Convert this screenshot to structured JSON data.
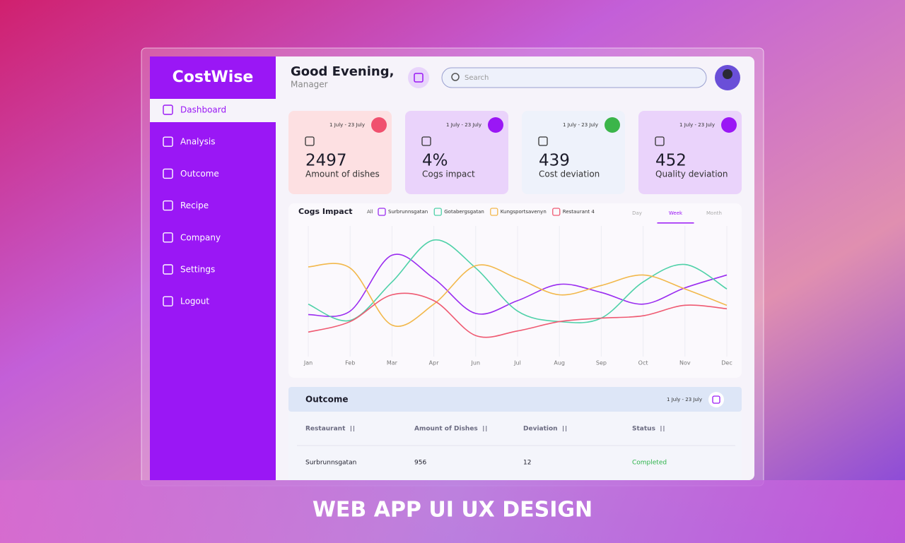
{
  "brand": "CostWise",
  "nav": [
    "Dashboard",
    "Analysis",
    "Outcome",
    "Recipe",
    "Company",
    "Settings",
    "Logout"
  ],
  "header": {
    "greeting": "Good Evening,",
    "role": "Manager",
    "search_placeholder": "Search"
  },
  "cards": [
    {
      "date": "1 July - 23 July",
      "value": "2497",
      "label": "Amount of dishes"
    },
    {
      "date": "1 July - 23 July",
      "value": "4%",
      "label": "Cogs impact"
    },
    {
      "date": "1 July - 23 July",
      "value": "439",
      "label": "Cost deviation"
    },
    {
      "date": "1 July - 23 July",
      "value": "452",
      "label": "Quality deviation"
    }
  ],
  "chart_data": {
    "type": "line",
    "title": "Cogs Impact",
    "filter_all": "All",
    "ranges": [
      "Day",
      "Week",
      "Month"
    ],
    "active_range": 1,
    "categories": [
      "Jan",
      "Feb",
      "Mar",
      "Apr",
      "Jun",
      "Jul",
      "Aug",
      "Sep",
      "Oct",
      "Nov",
      "Dec"
    ],
    "ylim": [
      0,
      100
    ],
    "series": [
      {
        "name": "Surbrunnsgatan",
        "color": "#9a2cf0",
        "values": [
          33,
          36,
          84,
          64,
          34,
          45,
          59,
          52,
          42,
          56,
          67
        ]
      },
      {
        "name": "Gotabergsgatan",
        "color": "#4fd1a8",
        "values": [
          42,
          28,
          61,
          97,
          73,
          36,
          27,
          30,
          61,
          76,
          55
        ]
      },
      {
        "name": "Kungsportsavenyn",
        "color": "#f2b84b",
        "values": [
          74,
          73,
          24,
          42,
          75,
          64,
          50,
          58,
          67,
          55,
          41
        ]
      },
      {
        "name": "Restaurant 4",
        "color": "#ef5a72",
        "values": [
          18,
          27,
          50,
          45,
          15,
          19,
          27,
          30,
          32,
          41,
          38
        ]
      }
    ]
  },
  "table": {
    "title": "Outcome",
    "date": "1 July - 23 July",
    "columns": [
      "Restaurant",
      "Amount of Dishes",
      "Deviation",
      "Status"
    ],
    "rows": [
      [
        "Surbrunnsgatan",
        956,
        12,
        "Completed"
      ]
    ]
  },
  "banner": "WEB APP UI UX DESIGN"
}
